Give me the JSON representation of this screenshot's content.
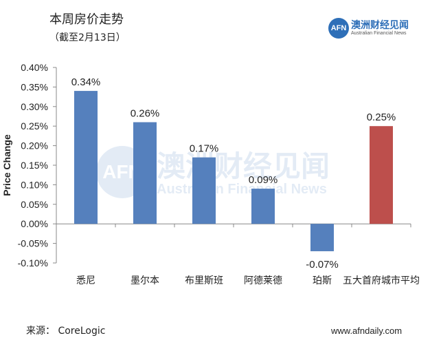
{
  "header": {
    "title": "本周房价走势",
    "subtitle": "（截至2月13日）"
  },
  "logo": {
    "mark": "AFN",
    "name_cn": "澳洲财经见闻",
    "name_en": "Australian Financial News"
  },
  "footer": {
    "source": "来源：  CoreLogic",
    "url": "www.afndaily.com"
  },
  "chart_data": {
    "type": "bar",
    "categories": [
      "悉尼",
      "墨尔本",
      "布里斯班",
      "阿德莱德",
      "珀斯",
      "五大首府城市平均"
    ],
    "values": [
      0.34,
      0.26,
      0.17,
      0.09,
      -0.07,
      0.25
    ],
    "data_labels": [
      "0.34%",
      "0.26%",
      "0.17%",
      "0.09%",
      "-0.07%",
      "0.25%"
    ],
    "ylabel": "Price Change",
    "ylim": [
      -0.1,
      0.4
    ],
    "yticks": [
      -0.1,
      -0.05,
      0.0,
      0.05,
      0.1,
      0.15,
      0.2,
      0.25,
      0.3,
      0.35,
      0.4
    ],
    "ytick_labels": [
      "-0.10%",
      "-0.05%",
      "0.00%",
      "0.05%",
      "0.10%",
      "0.15%",
      "0.20%",
      "0.25%",
      "0.30%",
      "0.35%",
      "0.40%"
    ],
    "colors": [
      "#5580bd",
      "#5580bd",
      "#5580bd",
      "#5580bd",
      "#5580bd",
      "#bd4f4c"
    ],
    "grid": false
  }
}
